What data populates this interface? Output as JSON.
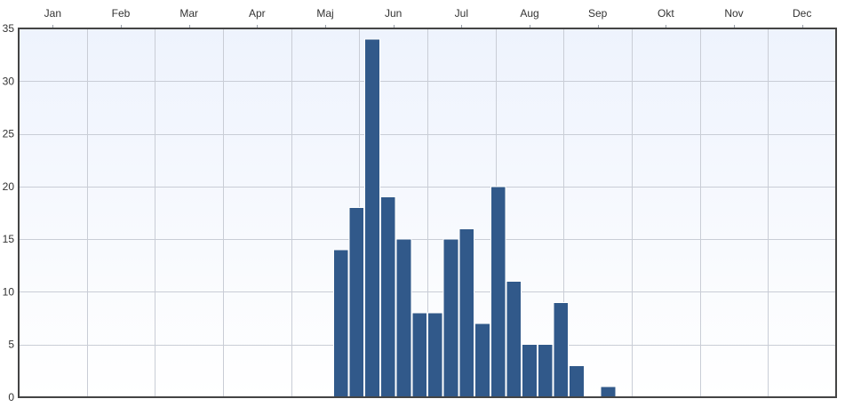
{
  "chart_data": {
    "type": "bar",
    "months": [
      "Jan",
      "Feb",
      "Mar",
      "Apr",
      "Maj",
      "Jun",
      "Jul",
      "Aug",
      "Sep",
      "Okt",
      "Nov",
      "Dec"
    ],
    "x_unit": "week",
    "bars": [
      {
        "week": 21,
        "value": 14
      },
      {
        "week": 22,
        "value": 18
      },
      {
        "week": 23,
        "value": 34
      },
      {
        "week": 24,
        "value": 19
      },
      {
        "week": 25,
        "value": 15
      },
      {
        "week": 26,
        "value": 8
      },
      {
        "week": 27,
        "value": 8
      },
      {
        "week": 28,
        "value": 15
      },
      {
        "week": 29,
        "value": 16
      },
      {
        "week": 30,
        "value": 7
      },
      {
        "week": 31,
        "value": 20
      },
      {
        "week": 32,
        "value": 11
      },
      {
        "week": 33,
        "value": 5
      },
      {
        "week": 34,
        "value": 5
      },
      {
        "week": 35,
        "value": 9
      },
      {
        "week": 36,
        "value": 3
      },
      {
        "week": 38,
        "value": 1
      }
    ],
    "y_ticks": [
      0,
      5,
      10,
      15,
      20,
      25,
      30,
      35
    ],
    "ylim": [
      0,
      35
    ],
    "grid": true,
    "x_axis_position": "top",
    "colors": {
      "bar": "#31598a",
      "grid": "#c9cdd6",
      "background_top": "#eef3fd",
      "background_bottom": "#ffffff"
    }
  }
}
